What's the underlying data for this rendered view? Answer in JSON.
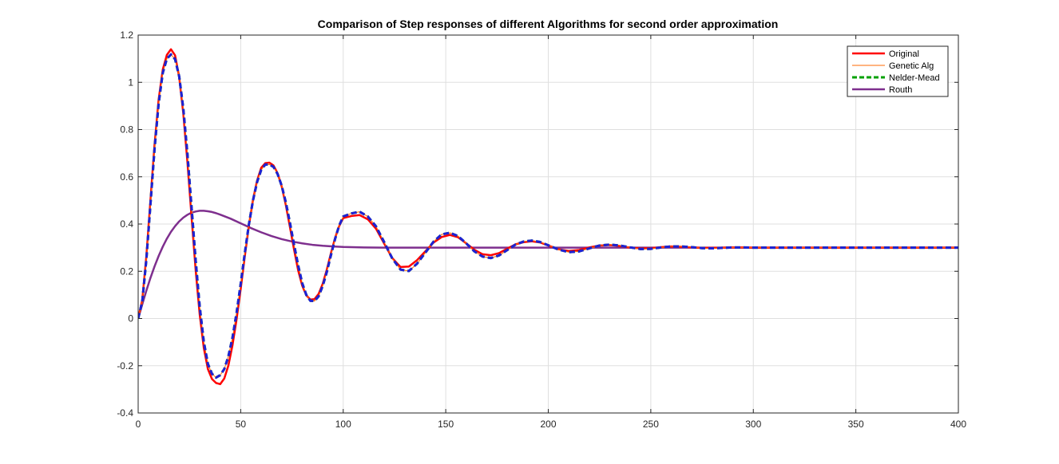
{
  "chart_data": {
    "type": "line",
    "title": "Comparison of Step responses of different Algorithms for second order approximation",
    "xlabel": "",
    "ylabel": "",
    "xlim": [
      0,
      400
    ],
    "ylim": [
      -0.4,
      1.2
    ],
    "x_ticks": [
      0,
      50,
      100,
      150,
      200,
      250,
      300,
      350,
      400
    ],
    "x_tick_labels": [
      "0",
      "50",
      "100",
      "150",
      "200",
      "250",
      "300",
      "350",
      "400"
    ],
    "y_ticks": [
      -0.4,
      -0.2,
      0,
      0.2,
      0.4,
      0.6,
      0.8,
      1,
      1.2
    ],
    "y_tick_labels": [
      "-0.4",
      "-0.2",
      "0",
      "0.2",
      "0.4",
      "0.6",
      "0.8",
      "1",
      "1.2"
    ],
    "grid": true,
    "legend_position": "top-right",
    "series": [
      {
        "name": "Original",
        "color": "#ff0000",
        "style": "solid-thick",
        "x": [
          0,
          2,
          4,
          6,
          8,
          10,
          12,
          14,
          16,
          18,
          20,
          22,
          24,
          26,
          28,
          30,
          32,
          34,
          36,
          38,
          40,
          42,
          44,
          46,
          48,
          50,
          52,
          54,
          56,
          58,
          60,
          62,
          64,
          66,
          68,
          70,
          72,
          74,
          76,
          78,
          80,
          82,
          84,
          86,
          88,
          90,
          92,
          94,
          96,
          98,
          100,
          104,
          108,
          112,
          116,
          120,
          124,
          128,
          132,
          136,
          140,
          144,
          148,
          152,
          156,
          160,
          164,
          168,
          172,
          176,
          180,
          184,
          188,
          192,
          196,
          200,
          205,
          210,
          215,
          220,
          225,
          230,
          235,
          240,
          245,
          250,
          255,
          260,
          265,
          270,
          275,
          280,
          285,
          290,
          295,
          300,
          310,
          320,
          330,
          340,
          350,
          360,
          370,
          380,
          390,
          400
        ],
        "values": [
          0.0,
          0.078,
          0.264,
          0.502,
          0.737,
          0.928,
          1.054,
          1.116,
          1.14,
          1.114,
          1.023,
          0.869,
          0.665,
          0.435,
          0.209,
          0.018,
          -0.124,
          -0.214,
          -0.256,
          -0.273,
          -0.278,
          -0.254,
          -0.199,
          -0.113,
          -0.003,
          0.125,
          0.263,
          0.393,
          0.502,
          0.584,
          0.638,
          0.658,
          0.66,
          0.648,
          0.615,
          0.559,
          0.481,
          0.388,
          0.293,
          0.205,
          0.139,
          0.098,
          0.08,
          0.082,
          0.104,
          0.147,
          0.207,
          0.276,
          0.34,
          0.391,
          0.425,
          0.434,
          0.438,
          0.42,
          0.38,
          0.317,
          0.255,
          0.218,
          0.22,
          0.247,
          0.284,
          0.321,
          0.345,
          0.354,
          0.344,
          0.318,
          0.291,
          0.272,
          0.268,
          0.277,
          0.296,
          0.314,
          0.323,
          0.327,
          0.322,
          0.309,
          0.293,
          0.286,
          0.29,
          0.301,
          0.309,
          0.311,
          0.307,
          0.3,
          0.297,
          0.298,
          0.302,
          0.305,
          0.304,
          0.301,
          0.299,
          0.299,
          0.3,
          0.301,
          0.301,
          0.3,
          0.3,
          0.3,
          0.3,
          0.3,
          0.3,
          0.3,
          0.3,
          0.3,
          0.3,
          0.3
        ]
      },
      {
        "name": "Genetic Alg",
        "color": "#ff6a00",
        "style": "solid-thin",
        "x": [
          0,
          2,
          4,
          6,
          8,
          10,
          12,
          14,
          16,
          18,
          20,
          22,
          24,
          26,
          28,
          30,
          32,
          34,
          36,
          38,
          40,
          42,
          44,
          46,
          48,
          50,
          52,
          54,
          56,
          58,
          60,
          62,
          64,
          66,
          68,
          70,
          72,
          74,
          76,
          78,
          80,
          82,
          84,
          86,
          88,
          90,
          92,
          94,
          96,
          98,
          100,
          104,
          108,
          112,
          116,
          120,
          124,
          128,
          132,
          136,
          140,
          144,
          148,
          152,
          156,
          160,
          164,
          168,
          172,
          176,
          180,
          184,
          188,
          192,
          196,
          200,
          205,
          210,
          215,
          220,
          225,
          230,
          235,
          240,
          245,
          250,
          255,
          260,
          265,
          270,
          275,
          280,
          285,
          290,
          295,
          300,
          310,
          320,
          330,
          340,
          350,
          360,
          370,
          380,
          390,
          400
        ],
        "values": [
          0.0,
          0.072,
          0.25,
          0.485,
          0.72,
          0.912,
          1.04,
          1.1,
          1.118,
          1.098,
          1.025,
          0.89,
          0.7,
          0.475,
          0.25,
          0.052,
          -0.098,
          -0.192,
          -0.234,
          -0.25,
          -0.24,
          -0.214,
          -0.16,
          -0.081,
          0.024,
          0.147,
          0.276,
          0.398,
          0.5,
          0.578,
          0.629,
          0.652,
          0.652,
          0.642,
          0.612,
          0.562,
          0.492,
          0.406,
          0.314,
          0.226,
          0.15,
          0.1,
          0.075,
          0.074,
          0.094,
          0.138,
          0.197,
          0.268,
          0.336,
          0.393,
          0.432,
          0.445,
          0.452,
          0.432,
          0.39,
          0.323,
          0.253,
          0.207,
          0.201,
          0.232,
          0.278,
          0.325,
          0.356,
          0.363,
          0.349,
          0.318,
          0.284,
          0.262,
          0.256,
          0.267,
          0.29,
          0.313,
          0.326,
          0.33,
          0.324,
          0.31,
          0.292,
          0.281,
          0.284,
          0.297,
          0.309,
          0.313,
          0.309,
          0.301,
          0.294,
          0.295,
          0.301,
          0.305,
          0.305,
          0.302,
          0.298,
          0.297,
          0.299,
          0.301,
          0.301,
          0.3,
          0.3,
          0.3,
          0.3,
          0.3,
          0.3,
          0.3,
          0.3,
          0.3,
          0.3,
          0.3
        ]
      },
      {
        "name": "Nelder-Mead",
        "color": "#00a000",
        "style": "dashed",
        "x": [
          0,
          2,
          4,
          6,
          8,
          10,
          12,
          14,
          16,
          18,
          20,
          22,
          24,
          26,
          28,
          30,
          32,
          34,
          36,
          38,
          40,
          42,
          44,
          46,
          48,
          50,
          52,
          54,
          56,
          58,
          60,
          62,
          64,
          66,
          68,
          70,
          72,
          74,
          76,
          78,
          80,
          82,
          84,
          86,
          88,
          90,
          92,
          94,
          96,
          98,
          100,
          104,
          108,
          112,
          116,
          120,
          124,
          128,
          132,
          136,
          140,
          144,
          148,
          152,
          156,
          160,
          164,
          168,
          172,
          176,
          180,
          184,
          188,
          192,
          196,
          200,
          205,
          210,
          215,
          220,
          225,
          230,
          235,
          240,
          245,
          250,
          255,
          260,
          265,
          270,
          275,
          280,
          285,
          290,
          295,
          300,
          310,
          320,
          330,
          340,
          350,
          360,
          370,
          380,
          390,
          400
        ],
        "values": [
          0.0,
          0.072,
          0.25,
          0.485,
          0.72,
          0.912,
          1.04,
          1.1,
          1.118,
          1.098,
          1.025,
          0.89,
          0.7,
          0.475,
          0.25,
          0.052,
          -0.098,
          -0.192,
          -0.234,
          -0.25,
          -0.24,
          -0.214,
          -0.16,
          -0.081,
          0.024,
          0.147,
          0.276,
          0.398,
          0.5,
          0.578,
          0.629,
          0.652,
          0.652,
          0.642,
          0.612,
          0.562,
          0.492,
          0.406,
          0.314,
          0.226,
          0.15,
          0.1,
          0.075,
          0.074,
          0.094,
          0.138,
          0.197,
          0.268,
          0.336,
          0.393,
          0.432,
          0.445,
          0.452,
          0.432,
          0.39,
          0.323,
          0.253,
          0.207,
          0.201,
          0.232,
          0.278,
          0.325,
          0.356,
          0.363,
          0.349,
          0.318,
          0.284,
          0.262,
          0.256,
          0.267,
          0.29,
          0.313,
          0.326,
          0.33,
          0.324,
          0.31,
          0.292,
          0.281,
          0.284,
          0.297,
          0.309,
          0.313,
          0.309,
          0.301,
          0.294,
          0.295,
          0.301,
          0.305,
          0.305,
          0.302,
          0.298,
          0.297,
          0.299,
          0.301,
          0.301,
          0.3,
          0.3,
          0.3,
          0.3,
          0.3,
          0.3,
          0.3,
          0.3,
          0.3,
          0.3,
          0.3
        ]
      },
      {
        "name": "Routh",
        "color": "#7e2f8e",
        "style": "solid-thick",
        "x": [
          0,
          2,
          4,
          6,
          8,
          10,
          12,
          14,
          16,
          18,
          20,
          22,
          24,
          26,
          28,
          30,
          32,
          34,
          36,
          38,
          40,
          45,
          50,
          55,
          60,
          65,
          70,
          75,
          80,
          85,
          90,
          95,
          100,
          110,
          120,
          130,
          140,
          150,
          160,
          170,
          180,
          200,
          250,
          300,
          350,
          400
        ],
        "values": [
          0.0,
          0.06,
          0.118,
          0.172,
          0.221,
          0.265,
          0.304,
          0.338,
          0.367,
          0.391,
          0.411,
          0.427,
          0.439,
          0.448,
          0.453,
          0.456,
          0.456,
          0.454,
          0.451,
          0.446,
          0.44,
          0.423,
          0.403,
          0.383,
          0.365,
          0.349,
          0.336,
          0.326,
          0.318,
          0.312,
          0.308,
          0.305,
          0.303,
          0.301,
          0.3,
          0.3,
          0.3,
          0.3,
          0.3,
          0.3,
          0.3,
          0.3,
          0.3,
          0.3,
          0.3,
          0.3
        ]
      }
    ]
  }
}
